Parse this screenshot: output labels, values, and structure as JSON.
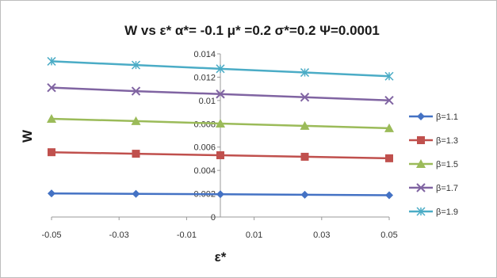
{
  "chart_data": {
    "type": "line",
    "title": "W vs ε* α*= -0.1 μ* =0.2  σ*=0.2  Ψ=0.0001",
    "xlabel": "ε*",
    "ylabel": "W",
    "x": [
      -0.05,
      -0.025,
      0,
      0.025,
      0.05
    ],
    "xlim": [
      -0.05,
      0.05
    ],
    "ylim": [
      0,
      0.014
    ],
    "x_ticks": [
      "-0.05",
      "-0.03",
      "-0.01",
      "0.01",
      "0.03",
      "0.05"
    ],
    "y_ticks": [
      "0",
      "0.002",
      "0.004",
      "0.006",
      "0.008",
      "0.01",
      "0.012",
      "0.014"
    ],
    "grid": false,
    "legend_position": "right",
    "series": [
      {
        "name": "β=1.1",
        "color": "#4472C4",
        "marker": "diamond",
        "values": [
          0.00202,
          0.00199,
          0.00195,
          0.00191,
          0.00187
        ]
      },
      {
        "name": "β=1.3",
        "color": "#C0504D",
        "marker": "square",
        "values": [
          0.00556,
          0.00543,
          0.0053,
          0.00517,
          0.00504
        ]
      },
      {
        "name": "β=1.5",
        "color": "#9BBB59",
        "marker": "triangle",
        "values": [
          0.00843,
          0.00823,
          0.00802,
          0.00782,
          0.00762
        ]
      },
      {
        "name": "β=1.7",
        "color": "#8064A2",
        "marker": "x",
        "values": [
          0.0111,
          0.0108,
          0.01055,
          0.01028,
          0.01001
        ]
      },
      {
        "name": "β=1.9",
        "color": "#4BACC6",
        "marker": "star",
        "values": [
          0.01336,
          0.01304,
          0.01272,
          0.0124,
          0.01208
        ]
      }
    ]
  }
}
